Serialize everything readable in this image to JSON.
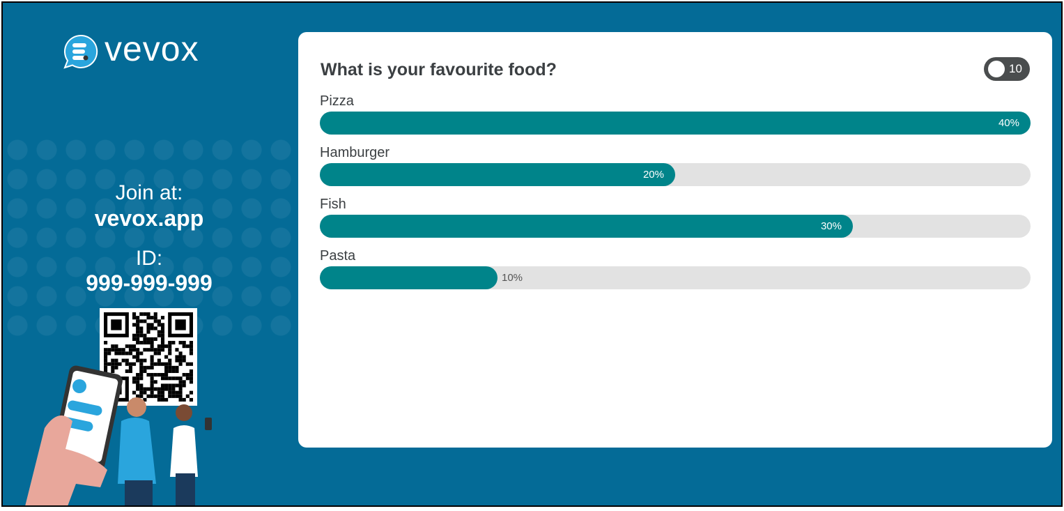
{
  "brand": {
    "name": "vevox",
    "bg": "#046b97",
    "accent": "#00848a"
  },
  "join": {
    "label": "Join at:",
    "url": "vevox.app",
    "id_label": "ID:",
    "id": "999-999-999"
  },
  "poll": {
    "question": "What is your favourite food?",
    "participants": "10",
    "participants_icon": "people-icon"
  },
  "chart_data": {
    "type": "bar",
    "orientation": "horizontal",
    "title": "What is your favourite food?",
    "categories": [
      "Pizza",
      "Hamburger",
      "Fish",
      "Pasta"
    ],
    "values": [
      40,
      20,
      30,
      10
    ],
    "labels": [
      "40%",
      "20%",
      "30%",
      "10%"
    ],
    "unit": "%"
  }
}
